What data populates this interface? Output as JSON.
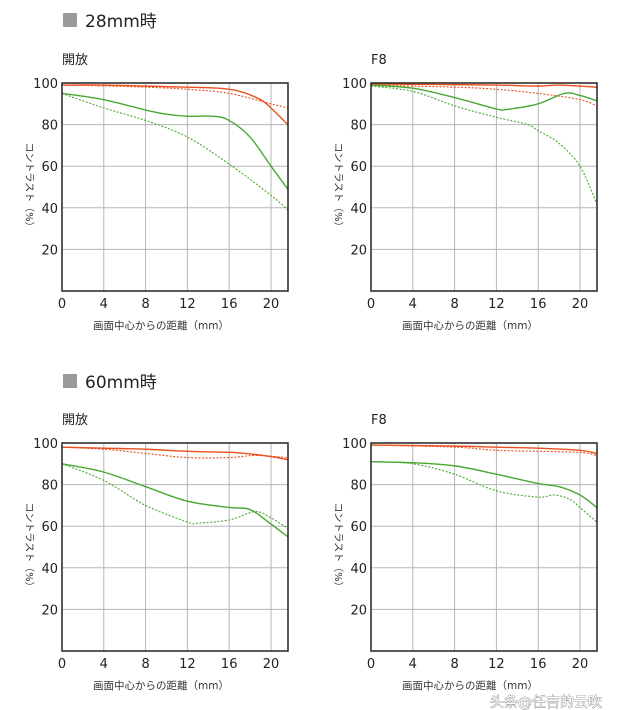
{
  "sections": [
    {
      "title": "28mm時"
    },
    {
      "title": "60mm時"
    }
  ],
  "watermark": "头条@任吉的云吹",
  "colors": {
    "orange": "#e8501e",
    "green": "#4aa832",
    "section_square": "#9a9a9a"
  },
  "chart_data": [
    {
      "type": "line",
      "section": 0,
      "title": "開放",
      "xlabel": "画面中心からの距離（mm）",
      "ylabel": "コントラスト（%）",
      "xlim": [
        0,
        21.6
      ],
      "ylim": [
        0,
        100
      ],
      "xticks": [
        "0",
        "4",
        "8",
        "12",
        "16",
        "20"
      ],
      "yticks": [
        "20",
        "40",
        "60",
        "80",
        "100"
      ],
      "grid": true,
      "series": [
        {
          "color": "orange",
          "style": "solid",
          "x": [
            0,
            4,
            8,
            12,
            15,
            17,
            19,
            20,
            21.6
          ],
          "y": [
            99,
            99,
            98.5,
            98,
            97.5,
            96,
            92,
            88,
            80
          ]
        },
        {
          "color": "orange",
          "style": "dotted",
          "x": [
            0,
            4,
            8,
            12,
            16,
            20,
            21.6
          ],
          "y": [
            99,
            98.6,
            98,
            97,
            95,
            90,
            88
          ]
        },
        {
          "color": "green",
          "style": "solid",
          "x": [
            0,
            4,
            8,
            10,
            12,
            14.5,
            16,
            18,
            20,
            21.6
          ],
          "y": [
            95,
            92,
            87,
            85,
            84,
            84,
            82,
            74,
            60,
            49
          ]
        },
        {
          "color": "green",
          "style": "dotted",
          "x": [
            0,
            4,
            8,
            12,
            16,
            20,
            21.6
          ],
          "y": [
            95,
            88,
            82,
            74,
            61,
            46,
            39
          ]
        }
      ]
    },
    {
      "type": "line",
      "section": 0,
      "title": "F8",
      "xlabel": "画面中心からの距離（mm）",
      "ylabel": "コントラスト（%）",
      "xlim": [
        0,
        21.6
      ],
      "ylim": [
        0,
        100
      ],
      "xticks": [
        "0",
        "4",
        "8",
        "12",
        "16",
        "20"
      ],
      "yticks": [
        "20",
        "40",
        "60",
        "80",
        "100"
      ],
      "grid": true,
      "series": [
        {
          "color": "orange",
          "style": "solid",
          "x": [
            0,
            6,
            12,
            16,
            18,
            21.6
          ],
          "y": [
            99.5,
            99.3,
            99,
            98.5,
            99,
            98
          ]
        },
        {
          "color": "orange",
          "style": "dotted",
          "x": [
            0,
            8,
            12,
            16,
            20,
            21.6
          ],
          "y": [
            99,
            98,
            97,
            95,
            92,
            89
          ]
        },
        {
          "color": "green",
          "style": "solid",
          "x": [
            0,
            4,
            8,
            12,
            13,
            16,
            18.5,
            20,
            21.6
          ],
          "y": [
            99,
            97.5,
            93,
            87.5,
            87.3,
            90,
            95,
            94,
            91.5
          ]
        },
        {
          "color": "green",
          "style": "dotted",
          "x": [
            0,
            4,
            8,
            12,
            15,
            16,
            18,
            20,
            21.6
          ],
          "y": [
            98.5,
            96,
            89,
            83.5,
            80,
            77,
            71,
            60,
            42
          ]
        }
      ]
    },
    {
      "type": "line",
      "section": 1,
      "title": "開放",
      "xlabel": "画面中心からの距離（mm）",
      "ylabel": "コントラスト（%）",
      "xlim": [
        0,
        21.6
      ],
      "ylim": [
        0,
        100
      ],
      "xticks": [
        "0",
        "4",
        "8",
        "12",
        "16",
        "20"
      ],
      "yticks": [
        "20",
        "40",
        "60",
        "80",
        "100"
      ],
      "grid": true,
      "series": [
        {
          "color": "orange",
          "style": "solid",
          "x": [
            0,
            4,
            8,
            12,
            16,
            17.5,
            20,
            21.6
          ],
          "y": [
            98,
            97.5,
            97,
            96,
            95.5,
            95,
            93.5,
            92
          ]
        },
        {
          "color": "orange",
          "style": "dotted",
          "x": [
            0,
            4,
            8,
            12,
            16,
            18.5,
            21.6
          ],
          "y": [
            98,
            97,
            95,
            93,
            93,
            94,
            93
          ]
        },
        {
          "color": "green",
          "style": "solid",
          "x": [
            0,
            4,
            8,
            12,
            16,
            18,
            20,
            21.6
          ],
          "y": [
            90,
            86,
            79,
            72,
            69,
            68,
            61,
            55
          ]
        },
        {
          "color": "green",
          "style": "dotted",
          "x": [
            0,
            4,
            8,
            12,
            13,
            16,
            18.5,
            20,
            21.6
          ],
          "y": [
            90,
            82,
            70,
            62,
            61.5,
            63,
            67,
            64,
            59
          ]
        }
      ]
    },
    {
      "type": "line",
      "section": 1,
      "title": "F8",
      "xlabel": "画面中心からの距離（mm）",
      "ylabel": "コントラスト（%）",
      "xlim": [
        0,
        21.6
      ],
      "ylim": [
        0,
        100
      ],
      "xticks": [
        "0",
        "4",
        "8",
        "12",
        "16",
        "20"
      ],
      "yticks": [
        "20",
        "40",
        "60",
        "80",
        "100"
      ],
      "grid": true,
      "series": [
        {
          "color": "orange",
          "style": "solid",
          "x": [
            0,
            8,
            12,
            16,
            20,
            21.6
          ],
          "y": [
            99,
            98.5,
            98,
            97.5,
            96.5,
            95
          ]
        },
        {
          "color": "orange",
          "style": "dotted",
          "x": [
            0,
            8,
            12,
            16,
            20,
            21.6
          ],
          "y": [
            99,
            98,
            96.5,
            96,
            95.5,
            94
          ]
        },
        {
          "color": "green",
          "style": "solid",
          "x": [
            0,
            4,
            8,
            12,
            16,
            18,
            20,
            21.6
          ],
          "y": [
            91,
            90.5,
            89,
            85,
            80.5,
            79,
            75,
            69
          ]
        },
        {
          "color": "green",
          "style": "dotted",
          "x": [
            0,
            4,
            8,
            12,
            16,
            17.5,
            19,
            20,
            21.6
          ],
          "y": [
            91,
            90,
            85,
            77,
            74,
            75,
            73,
            69,
            62
          ]
        }
      ]
    }
  ]
}
